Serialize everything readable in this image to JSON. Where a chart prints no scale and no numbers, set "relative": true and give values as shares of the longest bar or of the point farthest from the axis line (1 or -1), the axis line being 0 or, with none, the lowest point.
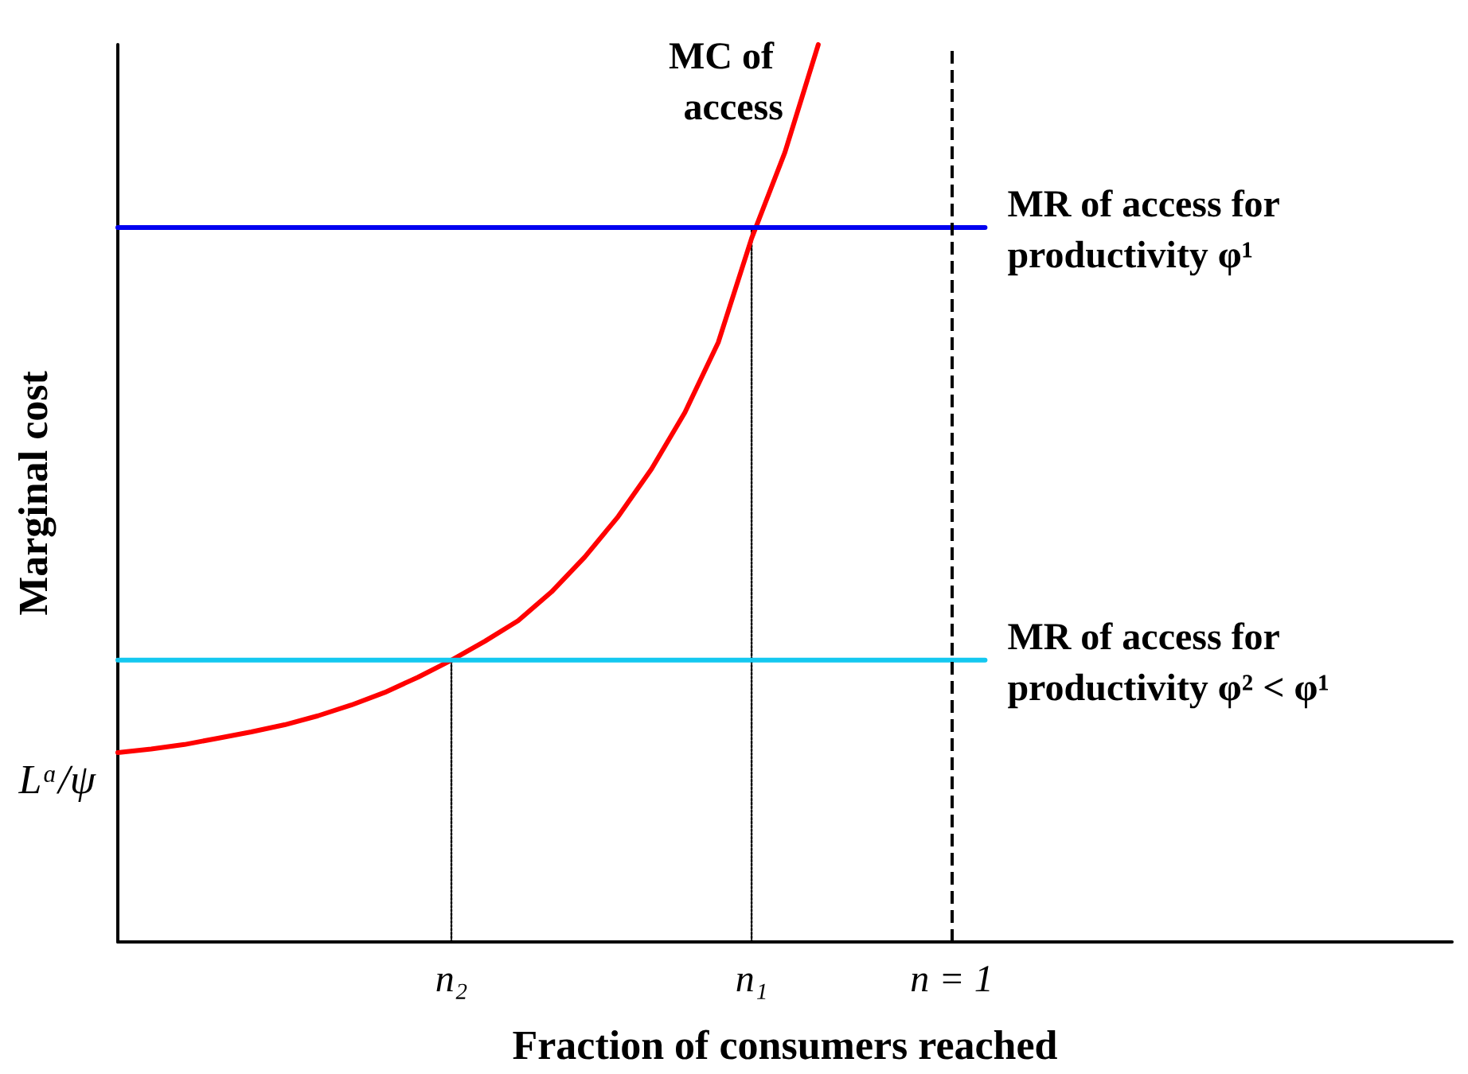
{
  "chart_data": {
    "type": "line",
    "relative": true,
    "marker": "none",
    "xlabel": "Fraction of consumers reached",
    "ylabel": "Marginal cost",
    "categories": [
      null,
      null,
      null,
      null,
      null,
      null,
      null,
      null,
      null,
      null,
      "n₂",
      null,
      null,
      null,
      null,
      null,
      null,
      null,
      null,
      "n₁",
      null,
      null,
      null,
      null,
      null,
      "n = 1",
      null,
      null,
      null,
      null,
      null,
      null,
      null,
      null,
      null,
      null,
      null,
      null,
      null,
      null,
      null
    ],
    "series": [
      {
        "name": "MC of access",
        "color": "#ff0000",
        "values": [
          0.211,
          0.215,
          0.22,
          0.227,
          0.234,
          0.242,
          0.252,
          0.264,
          0.278,
          0.295,
          0.314,
          0.335,
          0.358,
          0.39,
          0.429,
          0.474,
          0.527,
          0.59,
          0.668,
          0.784,
          0.88,
          1,
          null,
          null,
          null,
          null,
          null,
          null,
          null,
          null,
          null,
          null,
          null,
          null,
          null,
          null,
          null,
          null,
          null,
          null,
          null
        ]
      },
      {
        "name": "MR of access for productivity φ¹",
        "color": "#0000f0",
        "values": [
          0.796,
          0.796,
          0.796,
          0.796,
          0.796,
          0.796,
          0.796,
          0.796,
          0.796,
          0.796,
          0.796,
          0.796,
          0.796,
          0.796,
          0.796,
          0.796,
          0.796,
          0.796,
          0.796,
          0.796,
          0.796,
          0.796,
          0.796,
          0.796,
          0.796,
          0.796,
          0.796,
          null,
          null,
          null,
          null,
          null,
          null,
          null,
          null,
          null,
          null,
          null,
          null,
          null,
          null
        ]
      },
      {
        "name": "MR of access for productivity φ² < φ¹",
        "color": "#14c8f0",
        "values": [
          0.314,
          0.314,
          0.314,
          0.314,
          0.314,
          0.314,
          0.314,
          0.314,
          0.314,
          0.314,
          0.314,
          0.314,
          0.314,
          0.314,
          0.314,
          0.314,
          0.314,
          0.314,
          0.314,
          0.314,
          0.314,
          0.314,
          0.314,
          0.314,
          0.314,
          0.314,
          0.314,
          null,
          null,
          null,
          null,
          null,
          null,
          null,
          null,
          null,
          null,
          null,
          null,
          null,
          null
        ]
      },
      {
        "color": "#000000",
        "line_style": "dotted",
        "x": [
          "n₂",
          "n₂"
        ],
        "values": [
          0,
          0.314
        ]
      },
      {
        "color": "#000000",
        "line_style": "dotted",
        "x": [
          "n₁",
          "n₁"
        ],
        "values": [
          0,
          0.796
        ]
      }
    ],
    "ref_lines": [
      {
        "axis": "x",
        "value": "n = 1",
        "color": "#000000",
        "line_style": "dashed"
      }
    ],
    "annotations": [
      "Lᵅ/ψ"
    ]
  }
}
